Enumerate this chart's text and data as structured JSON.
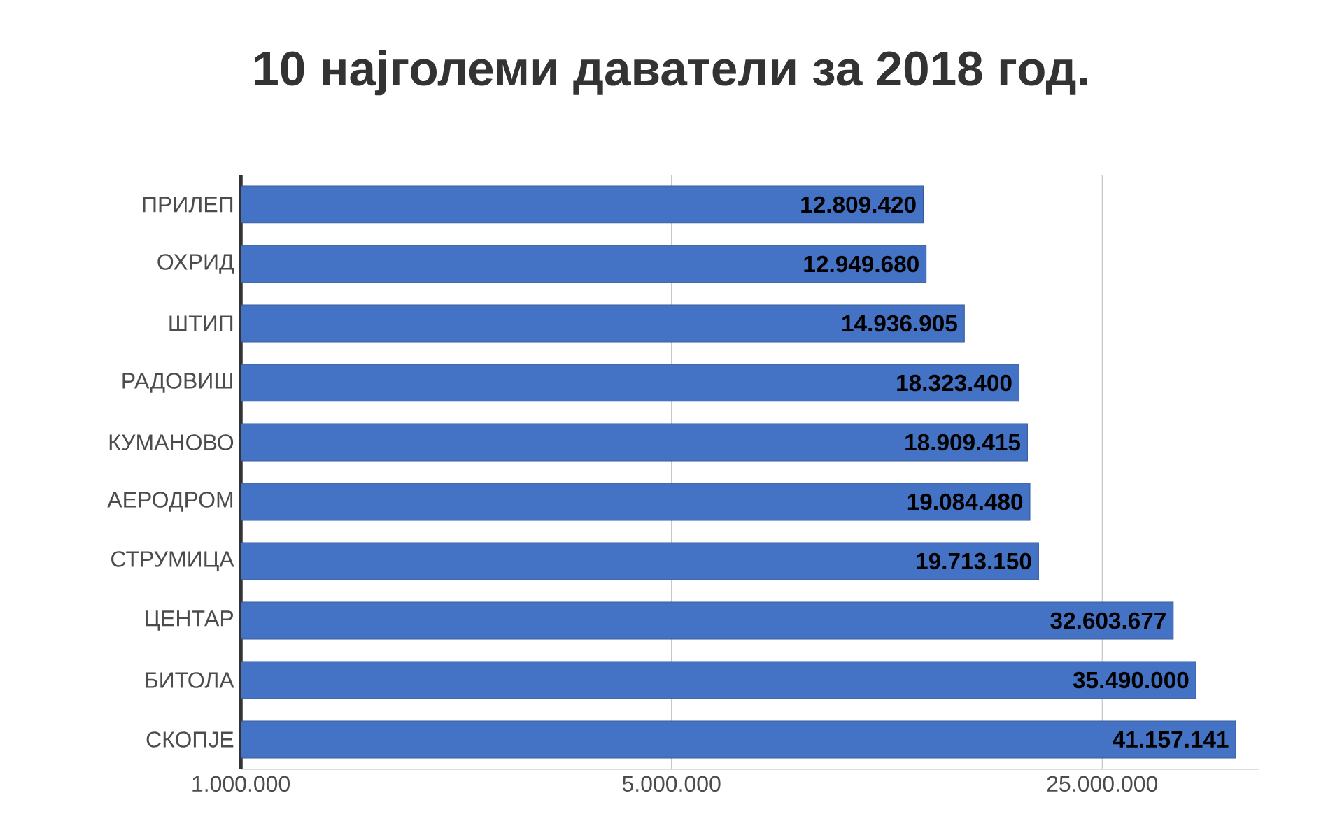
{
  "chart_data": {
    "type": "bar",
    "orientation": "horizontal",
    "title": "10 најголеми даватели за 2018 год.",
    "categories": [
      "ПРИЛЕП",
      "ОХРИД",
      "ШТИП",
      "РАДОВИШ",
      "КУМАНОВО",
      "АЕРОДРОМ",
      "СТРУМИЦА",
      "ЦЕНТАР",
      "БИТОЛА",
      "СКОПЈЕ"
    ],
    "values": [
      12809420,
      12949680,
      14936905,
      18323400,
      18909415,
      19084480,
      19713150,
      32603677,
      35490000,
      41157141
    ],
    "value_labels": [
      "12.809.420",
      "12.949.680",
      "14.936.905",
      "18.323.400",
      "18.909.415",
      "19.084.480",
      "19.713.150",
      "32.603.677",
      "35.490.000",
      "41.157.141"
    ],
    "color": "#4472c4",
    "log": "x",
    "grid": "x",
    "xlim": [
      1000000,
      45000000
    ],
    "xticks": [
      {
        "value": 1000000,
        "label": "1.000.000"
      },
      {
        "value": 5000000,
        "label": "5.000.000"
      },
      {
        "value": 25000000,
        "label": "25.000.000"
      }
    ]
  }
}
